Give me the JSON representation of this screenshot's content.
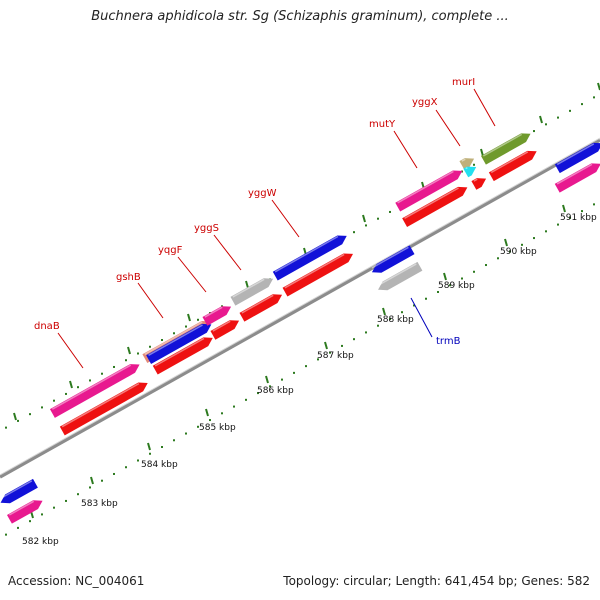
{
  "title": "Buchnera aphidicola str. Sg (Schizaphis graminum), complete ...",
  "footer": {
    "accession": "Accession: NC_004061",
    "summary": "Topology: circular; Length: 641,454 bp; Genes: 582"
  },
  "colors": {
    "backbone": "#8c8c8c",
    "tick": "#2d7a1f",
    "label_forward": "#cc0000",
    "label_reverse": "#0000bb",
    "cds": "#ee1111",
    "magenta": "#e8198f",
    "blue": "#1111d8",
    "gray": "#b4b4b4",
    "olive": "#6f9a2c",
    "tan": "#bfb07a",
    "cyan": "#22e0f0",
    "salmon": "#e38a78"
  },
  "kbp_labels": [
    "582 kbp",
    "583 kbp",
    "584 kbp",
    "585 kbp",
    "586 kbp",
    "587 kbp",
    "588 kbp",
    "589 kbp",
    "590 kbp",
    "591 kbp"
  ],
  "gene_labels": [
    {
      "name": "dnaB",
      "strand": "forward"
    },
    {
      "name": "gshB",
      "strand": "forward"
    },
    {
      "name": "yqgF",
      "strand": "forward"
    },
    {
      "name": "yggS",
      "strand": "forward"
    },
    {
      "name": "yggW",
      "strand": "forward"
    },
    {
      "name": "mutY",
      "strand": "forward"
    },
    {
      "name": "yggX",
      "strand": "forward"
    },
    {
      "name": "murI",
      "strand": "forward"
    },
    {
      "name": "trmB",
      "strand": "reverse"
    }
  ]
}
